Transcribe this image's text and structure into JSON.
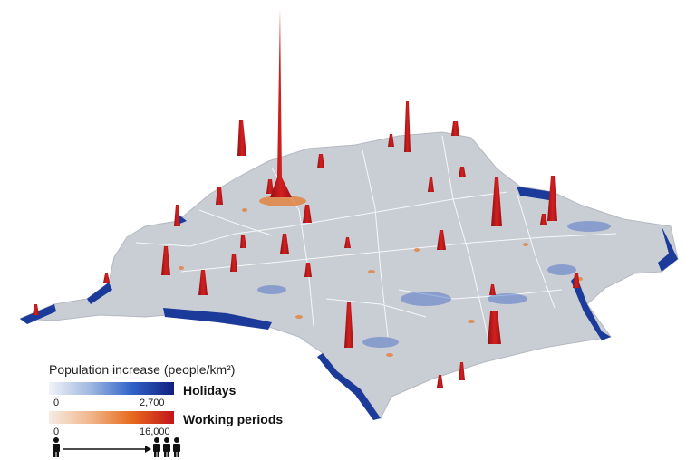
{
  "legend": {
    "title": "Population increase (people/km²)",
    "holidays": {
      "label": "Holidays",
      "min": "0",
      "max": "2,700",
      "color_low": "#f2f3f8",
      "color_high": "#101f7e"
    },
    "working": {
      "label": "Working periods",
      "min": "0",
      "max": "16,000",
      "color_low": "#f6ece4",
      "color_high": "#c4141a"
    },
    "scale_icons": {
      "low": "person-icon",
      "high": "people-group-icon"
    }
  },
  "colors": {
    "land": "#c9cdd4",
    "borders": "#ffffff",
    "holiday_coast": "#1b3a9a",
    "spike": "#c51d1d"
  }
}
